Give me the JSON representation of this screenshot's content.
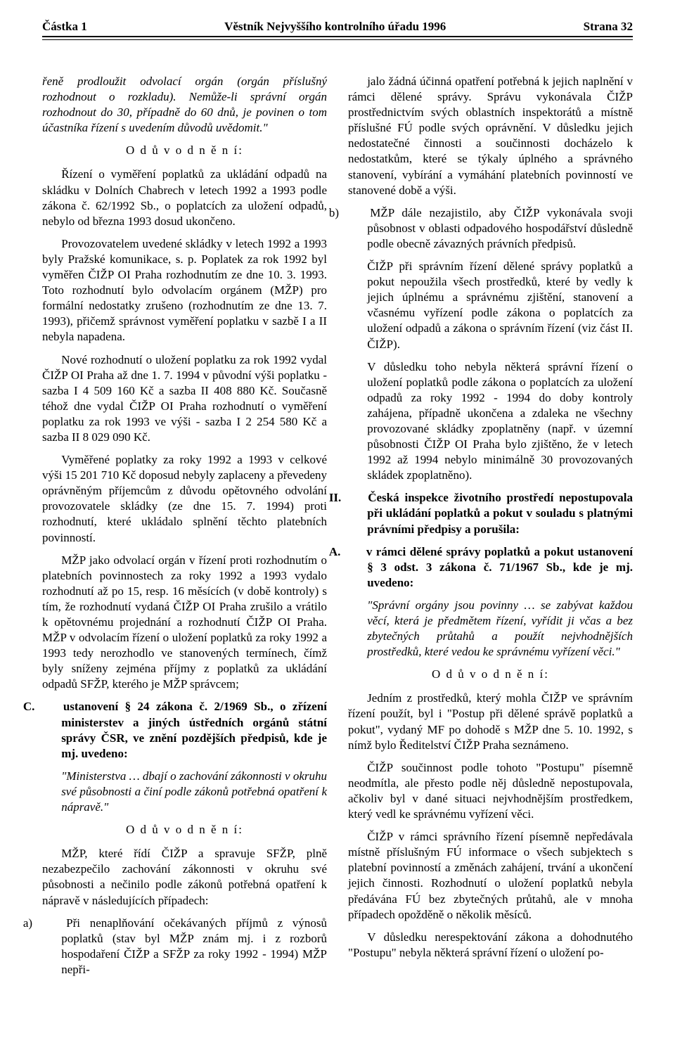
{
  "header": {
    "left": "Částka 1",
    "center": "Věstník Nejvyššího kontrolního úřadu 1996",
    "right": "Strana 32"
  },
  "col1": {
    "p1": "řeně prodloužit odvolací orgán (orgán příslušný rozhodnout o rozkladu). Nemůže-li správní orgán rozhodnout do 30, případně do 60 dnů, je povinen o tom účastníka řízení s uvedením důvodů uvědomit.\"",
    "od1": "O d ů v o d n ě n í:",
    "p2": "Řízení o vyměření poplatků za ukládání odpadů na skládku v Dolních Chabrech v letech 1992 a 1993 podle zákona č. 62/1992 Sb., o poplatcích za uložení odpadů, nebylo od března 1993 dosud ukončeno.",
    "p3": "Provozovatelem uvedené skládky v letech 1992 a 1993 byly Pražské komunikace, s. p. Poplatek za rok 1992 byl vyměřen ČIŽP OI Praha rozhodnutím ze dne 10. 3. 1993. Toto rozhodnutí bylo odvolacím orgánem (MŽP) pro formální nedostatky zrušeno (rozhodnutím ze dne 13. 7. 1993), přičemž správnost vyměření poplatku v sazbě I a II nebyla napadena.",
    "p4": "Nové rozhodnutí o uložení poplatku za rok 1992 vydal ČIŽP OI Praha až dne 1. 7. 1994 v původní výši poplatku - sazba I  4 509 160 Kč a sazba II  408 880 Kč. Současně téhož dne vydal ČIŽP OI Praha rozhodnutí o vyměření poplatku za rok 1993 ve výši - sazba I 2 254 580 Kč a sazba II  8 029 090 Kč.",
    "p5": "Vyměřené poplatky za roky 1992 a 1993 v celkové výši 15 201 710 Kč doposud nebyly zaplaceny a převedeny oprávněným příjemcům z důvodu opětovného odvolání provozovatele skládky (ze dne 15. 7. 1994) proti rozhodnutí, které ukládalo splnění těchto platebních povinností.",
    "p6": "MŽP jako odvolací orgán v řízení proti rozhodnutím o platebních povinnostech za roky 1992 a 1993 vydalo rozhodnutí až po 15, resp. 16 měsících (v době kontroly) s tím, že rozhodnutí vydaná ČIŽP OI Praha zrušilo a vrátilo k opětovnému projednání a rozhodnutí ČIŽP OI Praha. MŽP v odvolacím řízení o uložení poplatků za roky 1992 a 1993 tedy nerozhodlo ve stanovených termínech, čímž byly sníženy zejména příjmy z poplatků za ukládání odpadů SFŽP, kterého je MŽP správcem;",
    "c_label": "C.",
    "c_text": "ustanovení § 24 zákona č. 2/1969 Sb., o zřízení ministerstev a jiných ústředních orgánů státní správy ČSR, ve znění pozdějších předpisů, kde je mj. uvedeno:",
    "c_quote": "\"Ministerstva … dbají o zachování zákonnosti v okruhu své působnosti a činí podle zákonů potřebná opatření k nápravě.\"",
    "od2": "O d ů v o d n ě n í:",
    "p7": "MŽP, které řídí ČIŽP a spravuje SFŽP, plně nezabezpečilo zachování zákonnosti v okruhu své působnosti a nečinilo podle zákonů potřebná opatření k nápravě v následujících případech:",
    "a_label": "a)",
    "a_text": "Při nenaplňování očekávaných příjmů z výnosů poplatků (stav byl MŽP znám mj. i z rozborů hospodaření ČIŽP a SFŽP za roky 1992 - 1994) MŽP nepři-"
  },
  "col2": {
    "p1": "jalo žádná účinná opatření potřebná k jejich naplnění v rámci dělené správy. Správu vykonávala ČIŽP prostřednictvím svých oblastních inspektorátů a místně příslušné FÚ podle svých oprávnění. V důsledku jejich nedostatečné činnosti a součinnosti docházelo k nedostatkům, které se týkaly úplného a správného stanovení, vybírání a vymáhání platebních povinností ve stanovené době a výši.",
    "b_label": "b)",
    "b_text": "MŽP dále nezajistilo, aby ČIŽP vykonávala svoji působnost v oblasti odpadového hospodářství důsledně podle obecně závazných právních předpisů.",
    "p2": "ČIŽP při správním řízení dělené správy poplatků a pokut nepoužila všech prostředků, které by vedly k jejich úplnému a správnému zjištění, stanovení a včasnému vyřízení podle zákona o poplatcích za uložení odpadů a zákona o správním řízení (viz část II. ČIŽP).",
    "p3": "V důsledku toho nebyla některá správní řízení o uložení poplatků podle zákona o poplatcích za uložení odpadů za roky 1992 - 1994 do doby kontroly zahájena, případně ukončena a zdaleka ne všechny provozované skládky zpoplatněny (např. v územní působnosti ČIŽP OI Praha bylo zjištěno, že v letech 1992 až 1994 nebylo minimálně 30 provozovaných skládek zpoplatněno).",
    "ii_label": "II.",
    "ii_text": "Česká inspekce životního prostředí nepostupovala při ukládání poplatků a pokut v souladu s platnými právními předpisy a porušila:",
    "A_label": "A.",
    "A_text": "v rámci dělené správy poplatků a pokut ustanovení § 3 odst. 3 zákona č. 71/1967 Sb., kde je mj. uvedeno:",
    "A_quote": "\"Správní orgány jsou povinny … se zabývat každou věcí, která je předmětem řízení, vyřídit ji včas a bez zbytečných průtahů a použít nejvhodnějších prostředků, které vedou ke správnému vyřízení věci.\"",
    "od3": "O d ů v o d n ě n í:",
    "p4": "Jedním z prostředků, který mohla ČIŽP ve správním řízení použít, byl i \"Postup při dělené správě poplatků a pokut\", vydaný MF po dohodě s MŽP dne 5. 10. 1992, s nímž bylo Ředitelství ČIŽP Praha seznámeno.",
    "p5": "ČIŽP součinnost podle tohoto \"Postupu\" písemně neodmítla, ale přesto podle něj důsledně nepostupovala, ačkoliv byl v dané situaci nejvhodnějším prostředkem, který vedl ke správnému vyřízení věci.",
    "p6": "ČIŽP v rámci správního řízení písemně nepředávala místně příslušným FÚ informace o všech subjektech s platební povinností a změnách zahájení, trvání a ukončení jejich činnosti. Rozhodnutí o uložení poplatků nebyla předávána FÚ bez zbytečných průtahů, ale v mnoha případech opožděně o několik měsíců.",
    "p7": "V důsledku nerespektování zákona a dohodnutého \"Postupu\" nebyla některá správní řízení o uložení po-"
  }
}
